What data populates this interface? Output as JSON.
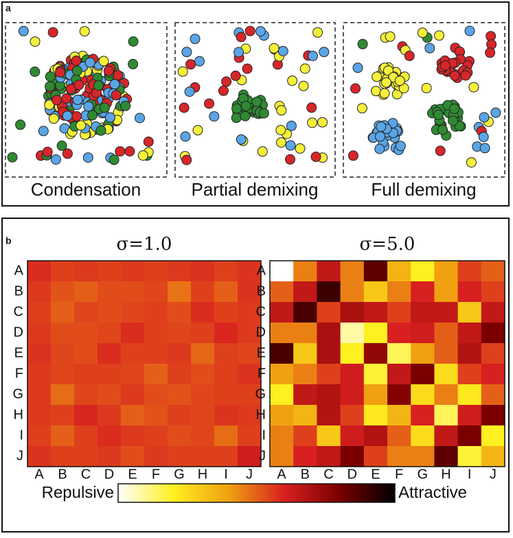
{
  "panel_a": {
    "label": "a",
    "captions": [
      "Condensation",
      "Partial demixing",
      "Full demixing"
    ]
  },
  "panel_b": {
    "label": "b"
  },
  "chart_data": [
    {
      "type": "heatmap",
      "title": "σ=1.0",
      "rows": [
        "A",
        "B",
        "C",
        "D",
        "E",
        "F",
        "G",
        "H",
        "I",
        "J"
      ],
      "columns": [
        "A",
        "B",
        "C",
        "D",
        "E",
        "F",
        "G",
        "H",
        "I",
        "J"
      ],
      "zlim": [
        0,
        1
      ],
      "values": [
        [
          0.58,
          0.55,
          0.56,
          0.55,
          0.56,
          0.55,
          0.56,
          0.57,
          0.55,
          0.57
        ],
        [
          0.56,
          0.52,
          0.5,
          0.53,
          0.53,
          0.54,
          0.47,
          0.55,
          0.5,
          0.57
        ],
        [
          0.55,
          0.5,
          0.54,
          0.53,
          0.54,
          0.55,
          0.53,
          0.58,
          0.55,
          0.56
        ],
        [
          0.56,
          0.53,
          0.53,
          0.54,
          0.58,
          0.55,
          0.54,
          0.55,
          0.59,
          0.56
        ],
        [
          0.57,
          0.54,
          0.53,
          0.58,
          0.55,
          0.55,
          0.56,
          0.49,
          0.55,
          0.54
        ],
        [
          0.56,
          0.54,
          0.55,
          0.55,
          0.54,
          0.5,
          0.55,
          0.53,
          0.55,
          0.57
        ],
        [
          0.56,
          0.48,
          0.54,
          0.53,
          0.56,
          0.53,
          0.52,
          0.54,
          0.55,
          0.55
        ],
        [
          0.56,
          0.55,
          0.59,
          0.56,
          0.5,
          0.52,
          0.55,
          0.54,
          0.57,
          0.56
        ],
        [
          0.55,
          0.5,
          0.55,
          0.58,
          0.56,
          0.55,
          0.53,
          0.54,
          0.48,
          0.55
        ],
        [
          0.57,
          0.55,
          0.55,
          0.56,
          0.53,
          0.56,
          0.55,
          0.55,
          0.55,
          0.62
        ]
      ]
    },
    {
      "type": "heatmap",
      "title": "σ=5.0",
      "rows": [
        "A",
        "B",
        "C",
        "D",
        "E",
        "F",
        "G",
        "H",
        "I",
        "J"
      ],
      "columns": [
        "A",
        "B",
        "C",
        "D",
        "E",
        "F",
        "G",
        "H",
        "I",
        "J"
      ],
      "zlim": [
        0,
        1
      ],
      "values": [
        [
          0.0,
          0.45,
          0.65,
          0.45,
          0.85,
          0.35,
          0.2,
          0.4,
          0.55,
          0.5
        ],
        [
          0.5,
          0.65,
          0.9,
          0.45,
          0.3,
          0.45,
          0.6,
          0.4,
          0.6,
          0.55
        ],
        [
          0.65,
          0.88,
          0.55,
          0.7,
          0.65,
          0.55,
          0.65,
          0.65,
          0.3,
          0.65
        ],
        [
          0.45,
          0.45,
          0.7,
          0.08,
          0.2,
          0.6,
          0.62,
          0.5,
          0.65,
          0.8
        ],
        [
          0.88,
          0.3,
          0.7,
          0.2,
          0.75,
          0.15,
          0.4,
          0.5,
          0.68,
          0.55
        ],
        [
          0.4,
          0.45,
          0.55,
          0.62,
          0.18,
          0.65,
          0.8,
          0.25,
          0.55,
          0.6
        ],
        [
          0.2,
          0.65,
          0.68,
          0.62,
          0.4,
          0.78,
          0.25,
          0.45,
          0.22,
          0.5
        ],
        [
          0.4,
          0.35,
          0.68,
          0.55,
          0.22,
          0.35,
          0.6,
          0.15,
          0.62,
          0.8
        ],
        [
          0.45,
          0.55,
          0.3,
          0.62,
          0.68,
          0.5,
          0.25,
          0.65,
          0.8,
          0.2
        ],
        [
          0.45,
          0.6,
          0.65,
          0.8,
          0.55,
          0.45,
          0.45,
          0.85,
          0.18,
          0.35
        ]
      ]
    }
  ],
  "colorbar": {
    "low_label": "Repulsive",
    "high_label": "Attractive",
    "colormap": [
      "#ffffff",
      "#fff020",
      "#f0a010",
      "#d82020",
      "#7a0000",
      "#000000"
    ]
  }
}
